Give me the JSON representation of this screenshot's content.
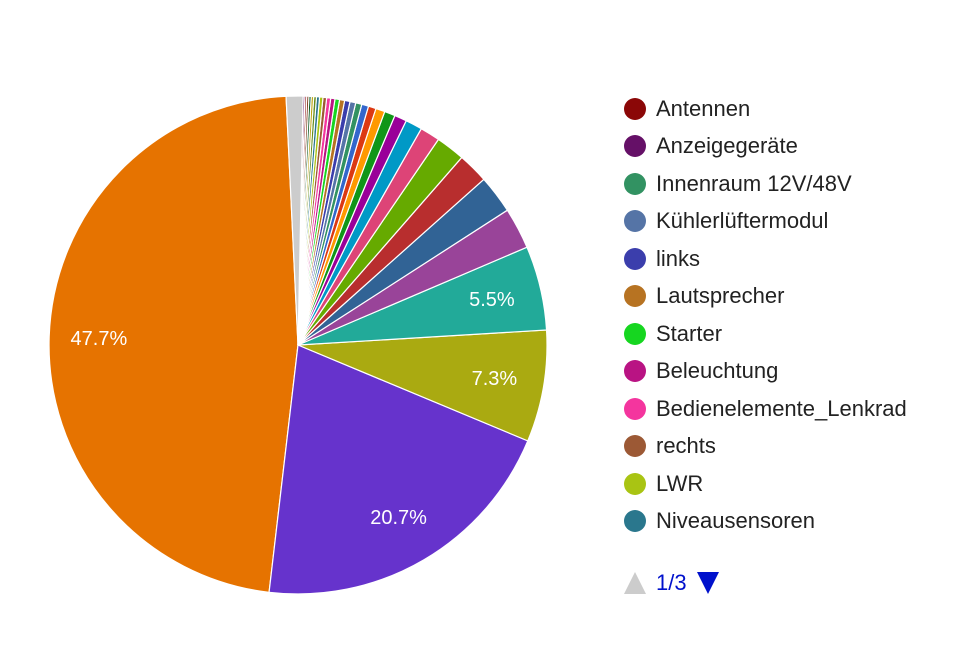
{
  "chart_data": {
    "type": "pie",
    "slices": [
      {
        "label": "",
        "value": 47.7,
        "color": "#e67300",
        "shown_label": "47.7%"
      },
      {
        "label": "",
        "value": 20.7,
        "color": "#6633cc",
        "shown_label": "20.7%"
      },
      {
        "label": "",
        "value": 7.3,
        "color": "#aaaa11",
        "shown_label": "7.3%"
      },
      {
        "label": "",
        "value": 5.5,
        "color": "#22aa99",
        "shown_label": "5.5%"
      },
      {
        "label": "",
        "value": 2.7,
        "color": "#994499",
        "shown_label": ""
      },
      {
        "label": "",
        "value": 2.5,
        "color": "#316395",
        "shown_label": ""
      },
      {
        "label": "",
        "value": 2.0,
        "color": "#b82e2e",
        "shown_label": ""
      },
      {
        "label": "",
        "value": 1.9,
        "color": "#66aa00",
        "shown_label": ""
      },
      {
        "label": "",
        "value": 1.3,
        "color": "#dd4477",
        "shown_label": ""
      },
      {
        "label": "",
        "value": 1.1,
        "color": "#0099c6",
        "shown_label": ""
      },
      {
        "label": "",
        "value": 0.8,
        "color": "#990099",
        "shown_label": ""
      },
      {
        "label": "",
        "value": 0.7,
        "color": "#109618",
        "shown_label": ""
      },
      {
        "label": "",
        "value": 0.6,
        "color": "#ff9900",
        "shown_label": ""
      },
      {
        "label": "",
        "value": 0.5,
        "color": "#dc3912",
        "shown_label": ""
      },
      {
        "label": "",
        "value": 0.45,
        "color": "#3366cc",
        "shown_label": ""
      },
      {
        "label": "",
        "value": 0.4,
        "color": "#329262",
        "shown_label": ""
      },
      {
        "label": "",
        "value": 0.38,
        "color": "#5574a6",
        "shown_label": ""
      },
      {
        "label": "",
        "value": 0.35,
        "color": "#3b3eac",
        "shown_label": ""
      },
      {
        "label": "",
        "value": 0.33,
        "color": "#b77322",
        "shown_label": ""
      },
      {
        "label": "",
        "value": 0.3,
        "color": "#16d620",
        "shown_label": ""
      },
      {
        "label": "",
        "value": 0.28,
        "color": "#b91383",
        "shown_label": ""
      },
      {
        "label": "",
        "value": 0.26,
        "color": "#f4359e",
        "shown_label": ""
      },
      {
        "label": "",
        "value": 0.24,
        "color": "#9c5935",
        "shown_label": ""
      },
      {
        "label": "",
        "value": 0.22,
        "color": "#a9c413",
        "shown_label": ""
      },
      {
        "label": "",
        "value": 0.2,
        "color": "#2a778d",
        "shown_label": ""
      },
      {
        "label": "",
        "value": 0.18,
        "color": "#668d1c",
        "shown_label": ""
      },
      {
        "label": "",
        "value": 0.16,
        "color": "#bea413",
        "shown_label": ""
      },
      {
        "label": "",
        "value": 0.15,
        "color": "#0c5922",
        "shown_label": ""
      },
      {
        "label": "",
        "value": 0.14,
        "color": "#743411",
        "shown_label": ""
      },
      {
        "label": "",
        "value": 0.12,
        "color": "#8b0707",
        "shown_label": ""
      },
      {
        "label": "",
        "value": 0.11,
        "color": "#651067",
        "shown_label": ""
      },
      {
        "label": "",
        "value": 1.1,
        "color": "#cccccc",
        "shown_label": ""
      }
    ],
    "legend": {
      "position": "right",
      "items": [
        {
          "name": "Antennen",
          "color": "#8b0707"
        },
        {
          "name": "Anzeigegeräte",
          "color": "#651067"
        },
        {
          "name": "Innenraum 12V/48V",
          "color": "#329262"
        },
        {
          "name": "Kühlerlüftermodul",
          "color": "#5574a6"
        },
        {
          "name": "links",
          "color": "#3b3eac"
        },
        {
          "name": "Lautsprecher",
          "color": "#b77322"
        },
        {
          "name": "Starter",
          "color": "#16d620"
        },
        {
          "name": "Beleuchtung",
          "color": "#b91383"
        },
        {
          "name": "Bedienelemente_Lenkrad",
          "color": "#f4359e"
        },
        {
          "name": "rechts",
          "color": "#9c5935"
        },
        {
          "name": "LWR",
          "color": "#a9c413"
        },
        {
          "name": "Niveausensoren",
          "color": "#2a778d"
        }
      ]
    }
  },
  "pager": {
    "text": "1/3",
    "up_icon": "triangle-up-icon",
    "down_icon": "triangle-down-icon",
    "up_color": "#cccccc",
    "down_color": "#0011cc"
  }
}
